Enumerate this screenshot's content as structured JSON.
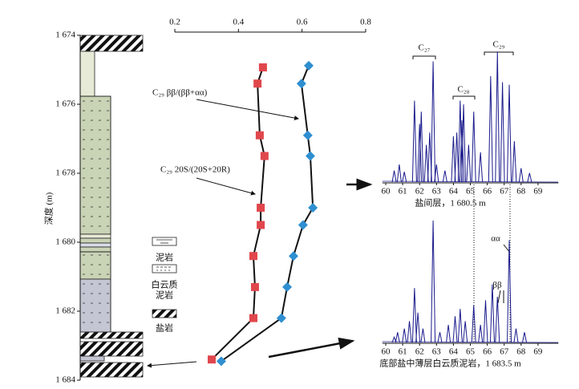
{
  "chart_data": [
    {
      "type": "scatter",
      "ylabel": "深度 (m)",
      "xlim": [
        0.2,
        0.8
      ],
      "xticks": [
        0.2,
        0.4,
        0.6,
        0.8
      ],
      "ylim": [
        1674,
        1684
      ],
      "yticks": [
        {
          "value": 1674,
          "label": "1 674"
        },
        {
          "value": 1676,
          "label": "1 676"
        },
        {
          "value": 1678,
          "label": "1 678"
        },
        {
          "value": 1680,
          "label": "1 680"
        },
        {
          "value": 1682,
          "label": "1 682"
        },
        {
          "value": 1684,
          "label": "1 684"
        }
      ],
      "series": [
        {
          "name": "C₂₉ 20S/(20S+20R)",
          "color": "#e0474c",
          "marker": "square",
          "x": [
            0.477,
            0.46,
            0.467,
            0.482,
            0.47,
            0.47,
            0.447,
            0.452,
            0.447,
            0.316
          ],
          "y": [
            1674.93,
            1675.4,
            1676.9,
            1677.5,
            1679.0,
            1679.5,
            1680.4,
            1681.3,
            1682.2,
            1683.4
          ]
        },
        {
          "name": "C₂₉ ββ/(ββ+αα)",
          "color": "#2f8fd0",
          "marker": "diamond",
          "x": [
            0.621,
            0.598,
            0.618,
            0.626,
            0.634,
            0.603,
            0.573,
            0.553,
            0.535,
            0.346
          ],
          "y": [
            1674.88,
            1675.4,
            1676.9,
            1677.5,
            1679.0,
            1679.5,
            1680.4,
            1681.3,
            1682.2,
            1683.45
          ]
        }
      ]
    },
    {
      "type": "peaks",
      "color": "#1a1a8c",
      "caption": "盐间层，1 680.5 m",
      "xlim": [
        59.8,
        70.2
      ],
      "xticks": [
        60,
        61,
        62,
        63,
        64,
        65,
        66,
        67,
        68,
        69
      ],
      "ylim": [
        0,
        110
      ],
      "labels": [
        "C₂₇",
        "C₂₈",
        "C₂₉"
      ],
      "x": [
        60.5,
        60.8,
        61.1,
        61.7,
        62.0,
        62.1,
        62.4,
        62.6,
        62.8,
        63.0,
        63.5,
        64.0,
        64.2,
        64.4,
        64.5,
        64.6,
        64.9,
        65.2,
        65.6,
        66.2,
        66.6,
        66.9,
        67.3,
        67.6,
        68.0,
        68.5
      ],
      "values": [
        10,
        15,
        9,
        67,
        48,
        58,
        31,
        41,
        99,
        15,
        10,
        38,
        41,
        67,
        51,
        64,
        31,
        58,
        25,
        87,
        107,
        82,
        80,
        34,
        12,
        8
      ]
    },
    {
      "type": "peaks",
      "color": "#1a1a8c",
      "caption": "底部盐中薄层白云质泥岩，1 683.5 m",
      "xlim": [
        59.8,
        70.2
      ],
      "xticks": [
        60,
        61,
        62,
        63,
        64,
        65,
        66,
        67,
        68,
        69
      ],
      "ylim": [
        0,
        110
      ],
      "labels": [
        "αα",
        "ββ"
      ],
      "x": [
        60.5,
        60.7,
        61.1,
        61.4,
        61.7,
        61.9,
        62.2,
        62.8,
        63.2,
        63.7,
        64.1,
        64.4,
        64.7,
        65.2,
        65.6,
        65.9,
        66.3,
        66.6,
        67.3,
        67.7,
        68.2
      ],
      "values": [
        5,
        9,
        12,
        18,
        45,
        25,
        12,
        100,
        9,
        15,
        22,
        28,
        18,
        31,
        15,
        35,
        48,
        38,
        84,
        12,
        9
      ]
    }
  ],
  "lithology_legend": [
    {
      "lines": [
        "泥岩"
      ]
    },
    {
      "lines": [
        "白云质",
        "泥岩"
      ]
    },
    {
      "lines": [
        "盐岩"
      ]
    }
  ]
}
